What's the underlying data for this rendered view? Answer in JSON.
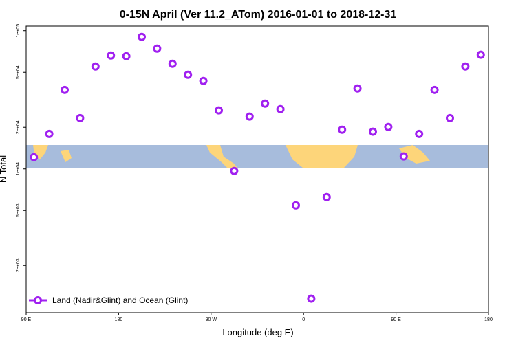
{
  "chart_data": {
    "type": "scatter",
    "title": "0-15N April (Ver 11.2_ATom)   2016-01-01 to 2018-12-31",
    "x_label": "Longitude (deg E)",
    "y_label": "N Total",
    "log_y": true,
    "legend_position": "bottom-left",
    "xlim": [
      90,
      540
    ],
    "xticks": [
      {
        "value": 90,
        "label": "90 E"
      },
      {
        "value": 180,
        "label": "180"
      },
      {
        "value": 270,
        "label": "90 W"
      },
      {
        "value": 360,
        "label": "0"
      },
      {
        "value": 450,
        "label": "90 E"
      },
      {
        "value": 540,
        "label": "180"
      }
    ],
    "ylim": [
      910,
      108000
    ],
    "yticks": [
      {
        "value": 2000,
        "label": "2e+03"
      },
      {
        "value": 5000,
        "label": "5e+03"
      },
      {
        "value": 10000,
        "label": "1e+04"
      },
      {
        "value": 20000,
        "label": "2e+04"
      },
      {
        "value": 50000,
        "label": "5e+04"
      },
      {
        "value": 100000,
        "label": "1e+05"
      }
    ],
    "series": [
      {
        "name": "Land (Nadir&Glint) and Ocean (Glint)",
        "color": "#a020f0",
        "x": [
          97.5,
          112.5,
          127.5,
          142.5,
          157.5,
          172.5,
          187.5,
          202.5,
          217.5,
          232.5,
          247.5,
          262.5,
          277.5,
          292.5,
          307.5,
          322.5,
          337.5,
          352.5,
          367.5,
          382.5,
          397.5,
          412.5,
          427.5,
          442.5,
          457.5,
          472.5,
          487.5,
          502.5,
          517.5,
          532.5
        ],
        "values": [
          12150,
          17900,
          37300,
          23300,
          55100,
          66200,
          65400,
          90200,
          74200,
          57700,
          48000,
          43300,
          26500,
          9660,
          23900,
          29700,
          27100,
          5450,
          1150,
          6250,
          19200,
          38200,
          18600,
          20100,
          12300,
          17900,
          37300,
          23300,
          55100,
          67000
        ]
      }
    ]
  }
}
